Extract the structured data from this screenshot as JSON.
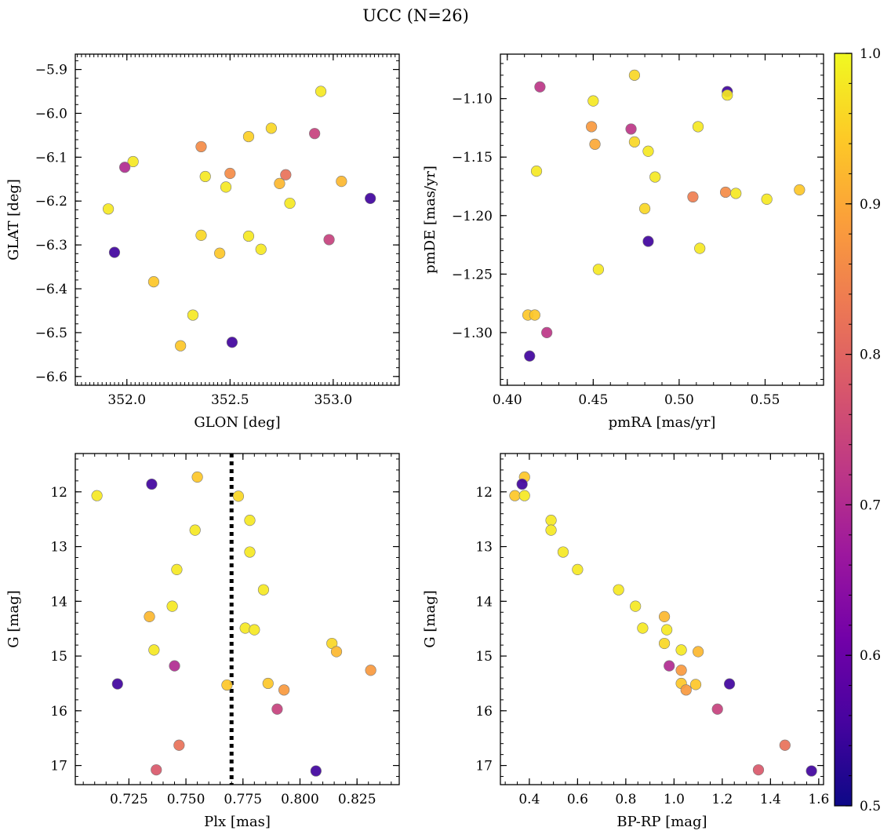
{
  "figure": {
    "title": "UCC (N=26)"
  },
  "colormap": {
    "name": "plasma",
    "stops": [
      "#0d0887",
      "#46039f",
      "#7201a8",
      "#9c179e",
      "#bd3786",
      "#d8576b",
      "#ed7953",
      "#fb9f3a",
      "#fdca26",
      "#f0f921"
    ],
    "range": [
      0.5,
      1.0
    ],
    "ticks": [
      "0.5",
      "0.6",
      "0.7",
      "0.8",
      "0.9",
      "1.0"
    ]
  },
  "chart_data": [
    {
      "type": "scatter",
      "xlabel": "GLON [deg]",
      "ylabel": "GLAT [deg]",
      "xlim": [
        351.75,
        353.32
      ],
      "ylim": [
        -6.62,
        -5.865
      ],
      "xticks": [
        "352.0",
        "352.5",
        "353.0"
      ],
      "yticks": [
        "-5.9",
        "-6.0",
        "-6.1",
        "-6.2",
        "-6.3",
        "-6.4",
        "-6.5",
        "-6.6"
      ],
      "points": [
        {
          "x": 352.94,
          "y": -5.95,
          "c": 0.98
        },
        {
          "x": 352.7,
          "y": -6.034,
          "c": 0.96
        },
        {
          "x": 352.59,
          "y": -6.053,
          "c": 0.95
        },
        {
          "x": 352.91,
          "y": -6.046,
          "c": 0.74
        },
        {
          "x": 352.36,
          "y": -6.076,
          "c": 0.86
        },
        {
          "x": 352.03,
          "y": -6.11,
          "c": 0.98
        },
        {
          "x": 351.99,
          "y": -6.123,
          "c": 0.7
        },
        {
          "x": 352.5,
          "y": -6.137,
          "c": 0.86
        },
        {
          "x": 352.38,
          "y": -6.144,
          "c": 0.98
        },
        {
          "x": 352.77,
          "y": -6.14,
          "c": 0.82
        },
        {
          "x": 352.74,
          "y": -6.16,
          "c": 0.92
        },
        {
          "x": 353.04,
          "y": -6.155,
          "c": 0.92
        },
        {
          "x": 352.48,
          "y": -6.168,
          "c": 0.98
        },
        {
          "x": 352.79,
          "y": -6.205,
          "c": 0.98
        },
        {
          "x": 353.18,
          "y": -6.194,
          "c": 0.55
        },
        {
          "x": 351.91,
          "y": -6.218,
          "c": 0.98
        },
        {
          "x": 352.36,
          "y": -6.278,
          "c": 0.96
        },
        {
          "x": 352.59,
          "y": -6.28,
          "c": 0.98
        },
        {
          "x": 352.98,
          "y": -6.288,
          "c": 0.74
        },
        {
          "x": 352.65,
          "y": -6.31,
          "c": 0.98
        },
        {
          "x": 352.45,
          "y": -6.319,
          "c": 0.94
        },
        {
          "x": 351.94,
          "y": -6.317,
          "c": 0.55
        },
        {
          "x": 352.13,
          "y": -6.384,
          "c": 0.94
        },
        {
          "x": 352.32,
          "y": -6.46,
          "c": 0.98
        },
        {
          "x": 352.26,
          "y": -6.53,
          "c": 0.94
        },
        {
          "x": 352.51,
          "y": -6.522,
          "c": 0.55
        }
      ]
    },
    {
      "type": "scatter",
      "xlabel": "pmRA [mas/yr]",
      "ylabel": "pmDE [mas/yr]",
      "xlim": [
        0.396,
        0.584
      ],
      "ylim": [
        -1.345,
        -1.062
      ],
      "xticks": [
        "0.40",
        "0.45",
        "0.50",
        "0.55"
      ],
      "yticks": [
        "-1.10",
        "-1.15",
        "-1.20",
        "-1.25",
        "-1.30"
      ],
      "points": [
        {
          "x": 0.474,
          "y": -1.08,
          "c": 0.96
        },
        {
          "x": 0.419,
          "y": -1.09,
          "c": 0.72
        },
        {
          "x": 0.528,
          "y": -1.094,
          "c": 0.55
        },
        {
          "x": 0.528,
          "y": -1.097,
          "c": 0.98
        },
        {
          "x": 0.45,
          "y": -1.102,
          "c": 0.98
        },
        {
          "x": 0.449,
          "y": -1.124,
          "c": 0.88
        },
        {
          "x": 0.472,
          "y": -1.126,
          "c": 0.72
        },
        {
          "x": 0.511,
          "y": -1.124,
          "c": 0.98
        },
        {
          "x": 0.451,
          "y": -1.139,
          "c": 0.9
        },
        {
          "x": 0.474,
          "y": -1.137,
          "c": 0.96
        },
        {
          "x": 0.482,
          "y": -1.145,
          "c": 0.98
        },
        {
          "x": 0.417,
          "y": -1.162,
          "c": 0.98
        },
        {
          "x": 0.486,
          "y": -1.167,
          "c": 0.98
        },
        {
          "x": 0.527,
          "y": -1.18,
          "c": 0.86
        },
        {
          "x": 0.533,
          "y": -1.181,
          "c": 0.98
        },
        {
          "x": 0.57,
          "y": -1.178,
          "c": 0.94
        },
        {
          "x": 0.508,
          "y": -1.184,
          "c": 0.84
        },
        {
          "x": 0.551,
          "y": -1.186,
          "c": 0.98
        },
        {
          "x": 0.48,
          "y": -1.194,
          "c": 0.96
        },
        {
          "x": 0.482,
          "y": -1.222,
          "c": 0.55
        },
        {
          "x": 0.512,
          "y": -1.228,
          "c": 0.98
        },
        {
          "x": 0.453,
          "y": -1.246,
          "c": 0.98
        },
        {
          "x": 0.412,
          "y": -1.285,
          "c": 0.94
        },
        {
          "x": 0.416,
          "y": -1.285,
          "c": 0.94
        },
        {
          "x": 0.423,
          "y": -1.3,
          "c": 0.72
        },
        {
          "x": 0.413,
          "y": -1.32,
          "c": 0.55
        }
      ]
    },
    {
      "type": "scatter",
      "xlabel": "Plx [mas]",
      "ylabel": "G [mag]",
      "xlim": [
        0.7015,
        0.8435
      ],
      "ylim": [
        17.35,
        11.3
      ],
      "xticks": [
        "0.725",
        "0.750",
        "0.775",
        "0.800",
        "0.825"
      ],
      "yticks": [
        "12",
        "13",
        "14",
        "15",
        "16",
        "17"
      ],
      "vline": 0.77,
      "points": [
        {
          "x": 0.755,
          "y": 11.73,
          "c": 0.94
        },
        {
          "x": 0.735,
          "y": 11.86,
          "c": 0.55
        },
        {
          "x": 0.711,
          "y": 12.07,
          "c": 0.98
        },
        {
          "x": 0.773,
          "y": 12.08,
          "c": 0.96
        },
        {
          "x": 0.778,
          "y": 12.52,
          "c": 0.98
        },
        {
          "x": 0.754,
          "y": 12.7,
          "c": 0.98
        },
        {
          "x": 0.778,
          "y": 13.1,
          "c": 0.98
        },
        {
          "x": 0.746,
          "y": 13.42,
          "c": 0.98
        },
        {
          "x": 0.784,
          "y": 13.79,
          "c": 0.98
        },
        {
          "x": 0.744,
          "y": 14.09,
          "c": 0.98
        },
        {
          "x": 0.734,
          "y": 14.28,
          "c": 0.92
        },
        {
          "x": 0.776,
          "y": 14.49,
          "c": 0.98
        },
        {
          "x": 0.78,
          "y": 14.52,
          "c": 0.98
        },
        {
          "x": 0.814,
          "y": 14.77,
          "c": 0.96
        },
        {
          "x": 0.736,
          "y": 14.89,
          "c": 0.98
        },
        {
          "x": 0.816,
          "y": 14.92,
          "c": 0.92
        },
        {
          "x": 0.745,
          "y": 15.18,
          "c": 0.7
        },
        {
          "x": 0.831,
          "y": 15.26,
          "c": 0.88
        },
        {
          "x": 0.72,
          "y": 15.51,
          "c": 0.55
        },
        {
          "x": 0.768,
          "y": 15.53,
          "c": 0.94
        },
        {
          "x": 0.786,
          "y": 15.5,
          "c": 0.94
        },
        {
          "x": 0.793,
          "y": 15.62,
          "c": 0.88
        },
        {
          "x": 0.79,
          "y": 15.97,
          "c": 0.74
        },
        {
          "x": 0.747,
          "y": 16.63,
          "c": 0.82
        },
        {
          "x": 0.737,
          "y": 17.08,
          "c": 0.78
        },
        {
          "x": 0.807,
          "y": 17.1,
          "c": 0.55
        }
      ]
    },
    {
      "type": "scatter",
      "xlabel": "BP-RP [mag]",
      "ylabel": "G [mag]",
      "xlim": [
        0.28,
        1.62
      ],
      "ylim": [
        17.35,
        11.3
      ],
      "xticks": [
        "0.4",
        "0.6",
        "0.8",
        "1.0",
        "1.2",
        "1.4",
        "1.6"
      ],
      "yticks": [
        "12",
        "13",
        "14",
        "15",
        "16",
        "17"
      ],
      "points": [
        {
          "x": 0.38,
          "y": 11.73,
          "c": 0.94
        },
        {
          "x": 0.37,
          "y": 11.86,
          "c": 0.55
        },
        {
          "x": 0.34,
          "y": 12.07,
          "c": 0.94
        },
        {
          "x": 0.38,
          "y": 12.07,
          "c": 0.98
        },
        {
          "x": 0.49,
          "y": 12.52,
          "c": 0.98
        },
        {
          "x": 0.49,
          "y": 12.7,
          "c": 0.98
        },
        {
          "x": 0.54,
          "y": 13.1,
          "c": 0.98
        },
        {
          "x": 0.6,
          "y": 13.42,
          "c": 0.98
        },
        {
          "x": 0.77,
          "y": 13.79,
          "c": 0.98
        },
        {
          "x": 0.84,
          "y": 14.09,
          "c": 0.98
        },
        {
          "x": 0.96,
          "y": 14.28,
          "c": 0.92
        },
        {
          "x": 0.87,
          "y": 14.49,
          "c": 0.98
        },
        {
          "x": 0.97,
          "y": 14.52,
          "c": 0.98
        },
        {
          "x": 0.96,
          "y": 14.77,
          "c": 0.96
        },
        {
          "x": 1.03,
          "y": 14.89,
          "c": 0.98
        },
        {
          "x": 1.1,
          "y": 14.92,
          "c": 0.92
        },
        {
          "x": 0.98,
          "y": 15.18,
          "c": 0.7
        },
        {
          "x": 1.03,
          "y": 15.26,
          "c": 0.88
        },
        {
          "x": 1.23,
          "y": 15.51,
          "c": 0.55
        },
        {
          "x": 1.03,
          "y": 15.5,
          "c": 0.94
        },
        {
          "x": 1.09,
          "y": 15.52,
          "c": 0.94
        },
        {
          "x": 1.05,
          "y": 15.62,
          "c": 0.88
        },
        {
          "x": 1.18,
          "y": 15.97,
          "c": 0.74
        },
        {
          "x": 1.46,
          "y": 16.63,
          "c": 0.82
        },
        {
          "x": 1.35,
          "y": 17.08,
          "c": 0.78
        },
        {
          "x": 1.57,
          "y": 17.1,
          "c": 0.55
        }
      ]
    }
  ]
}
